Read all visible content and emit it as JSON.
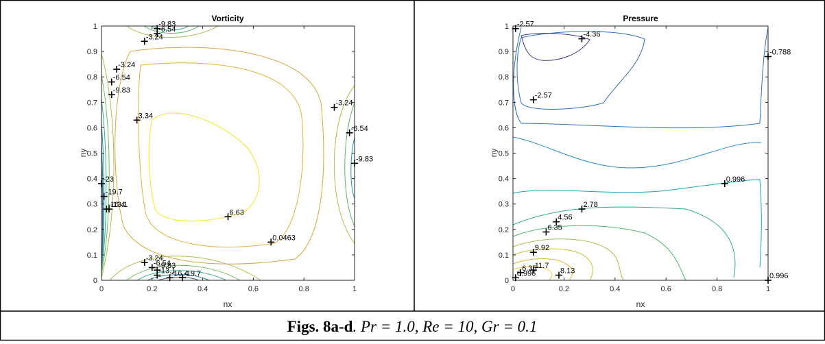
{
  "figure": {
    "caption": {
      "bold": "Figs. 8a-d",
      "rest": ".  Pr =  1.0, Re = 10, Gr = 0.1"
    }
  },
  "chart_data": [
    {
      "type": "contour",
      "title": "Vorticity",
      "xlabel": "nx",
      "ylabel": "ny",
      "xlim": [
        0,
        1
      ],
      "ylim": [
        0,
        1
      ],
      "xticks": [
        "0",
        "0.2",
        "0.4",
        "0.6",
        "0.8",
        "1"
      ],
      "yticks": [
        "0",
        "0.1",
        "0.2",
        "0.3",
        "0.4",
        "0.5",
        "0.6",
        "0.7",
        "0.8",
        "0.9",
        "1"
      ],
      "grid": false,
      "level_labels": [
        {
          "text": "-9.83",
          "x": 0.22,
          "y": 0.99
        },
        {
          "text": "-6.54",
          "x": 0.22,
          "y": 0.97
        },
        {
          "text": "-3.24",
          "x": 0.17,
          "y": 0.94
        },
        {
          "text": "-3.24",
          "x": 0.06,
          "y": 0.83
        },
        {
          "text": "-6.54",
          "x": 0.04,
          "y": 0.78
        },
        {
          "text": "-9.83",
          "x": 0.04,
          "y": 0.73
        },
        {
          "text": "3.34",
          "x": 0.14,
          "y": 0.63
        },
        {
          "text": "-3.24",
          "x": 0.92,
          "y": 0.68
        },
        {
          "text": "-6.54",
          "x": 0.98,
          "y": 0.58
        },
        {
          "text": "-9.83",
          "x": 1.0,
          "y": 0.46
        },
        {
          "text": "-23",
          "x": 0.0,
          "y": 0.38
        },
        {
          "text": "-19.7",
          "x": 0.01,
          "y": 0.33
        },
        {
          "text": "-16.4",
          "x": 0.02,
          "y": 0.28
        },
        {
          "text": "-13.1",
          "x": 0.03,
          "y": 0.28
        },
        {
          "text": "6.63",
          "x": 0.5,
          "y": 0.25
        },
        {
          "text": "0.0463",
          "x": 0.67,
          "y": 0.15
        },
        {
          "text": "-3.24",
          "x": 0.17,
          "y": 0.07
        },
        {
          "text": "-6.54",
          "x": 0.2,
          "y": 0.05
        },
        {
          "text": "-9.83",
          "x": 0.22,
          "y": 0.04
        },
        {
          "text": "-13.1",
          "x": 0.22,
          "y": 0.02
        },
        {
          "text": "-16.4",
          "x": 0.27,
          "y": 0.01
        },
        {
          "text": "-19.7",
          "x": 0.32,
          "y": 0.01
        }
      ]
    },
    {
      "type": "contour",
      "title": "Pressure",
      "xlabel": "nx",
      "ylabel": "ny",
      "xlim": [
        0,
        1
      ],
      "ylim": [
        0,
        1
      ],
      "xticks": [
        "0",
        "0.2",
        "0.4",
        "0.6",
        "0.8",
        "1"
      ],
      "yticks": [
        "0",
        "0.1",
        "0.2",
        "0.3",
        "0.4",
        "0.5",
        "0.6",
        "0.7",
        "0.8",
        "0.9",
        "1"
      ],
      "grid": false,
      "level_labels": [
        {
          "text": "-2.57",
          "x": 0.01,
          "y": 0.99
        },
        {
          "text": "-4.36",
          "x": 0.27,
          "y": 0.95
        },
        {
          "text": "-0.788",
          "x": 1.0,
          "y": 0.88
        },
        {
          "text": "-2.57",
          "x": 0.08,
          "y": 0.71
        },
        {
          "text": "0.996",
          "x": 0.83,
          "y": 0.38
        },
        {
          "text": "2.78",
          "x": 0.27,
          "y": 0.28
        },
        {
          "text": "4.56",
          "x": 0.17,
          "y": 0.23
        },
        {
          "text": "6.35",
          "x": 0.13,
          "y": 0.19
        },
        {
          "text": "9.92",
          "x": 0.08,
          "y": 0.11
        },
        {
          "text": "11.7",
          "x": 0.08,
          "y": 0.04
        },
        {
          "text": "6.35",
          "x": 0.03,
          "y": 0.03
        },
        {
          "text": "0.996",
          "x": 0.01,
          "y": 0.01
        },
        {
          "text": "8.13",
          "x": 0.18,
          "y": 0.02
        },
        {
          "text": "0.996",
          "x": 1.0,
          "y": 0.0
        }
      ]
    }
  ]
}
